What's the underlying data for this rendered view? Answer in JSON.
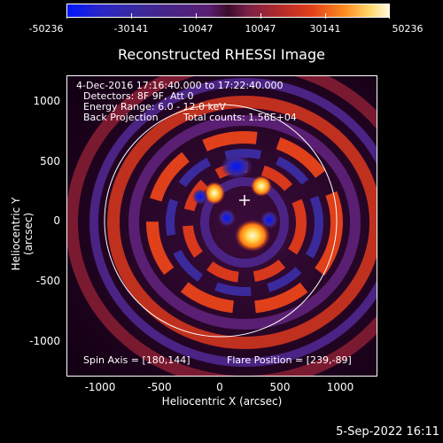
{
  "colorbar": {
    "ticks": [
      "-50236",
      "-30141",
      "-10047",
      "10047",
      "30141",
      "50236"
    ]
  },
  "title": "Reconstructed RHESSI Image",
  "info": {
    "time_range": "4-Dec-2016 17:16:40.000 to 17:22:40.000",
    "detectors": "Detectors: 8F 9F, Att 0",
    "energy": "Energy Range: 6.0 - 12.0 keV",
    "method": "Back Projection",
    "counts": "Total counts: 1.56E+04"
  },
  "spin_axis": "Spin Axis = [180,144]",
  "flare_position": "Flare Position = [239,-89]",
  "axes": {
    "xlabel": "Heliocentric X (arcsec)",
    "ylabel": "Heliocentric Y (arcsec)",
    "xticks": [
      "-1000",
      "-500",
      "0",
      "500",
      "1000"
    ],
    "yticks": [
      "1000",
      "500",
      "0",
      "-500",
      "-1000"
    ]
  },
  "footer": "5-Sep-2022 16:11"
}
